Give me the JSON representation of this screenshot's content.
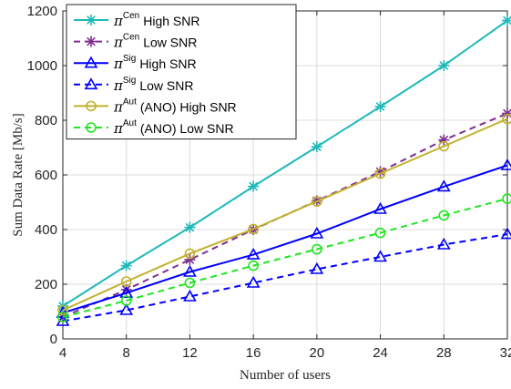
{
  "chart_data": {
    "type": "line",
    "xlabel": "Number of users",
    "ylabel": "Sum Data Rate [Mb/s]",
    "xlim": [
      4,
      32
    ],
    "ylim": [
      0,
      1200
    ],
    "xticks": [
      4,
      8,
      12,
      16,
      20,
      24,
      28,
      32
    ],
    "yticks": [
      0,
      200,
      400,
      600,
      800,
      1000,
      1200
    ],
    "grid": true,
    "legend_position": "top-left",
    "x": [
      4,
      8,
      12,
      16,
      20,
      24,
      28,
      32
    ],
    "series": [
      {
        "name_symbol": "π",
        "name_superscript": "Cen",
        "name_suffix": "High SNR",
        "color": "#1fb9b9",
        "line_style": "solid",
        "marker": "asterisk",
        "values": [
          120,
          268,
          408,
          558,
          703,
          850,
          1000,
          1165
        ]
      },
      {
        "name_symbol": "π",
        "name_superscript": "Cen",
        "name_suffix": "Low SNR",
        "color": "#7e2f8e",
        "line_style": "dashed",
        "marker": "asterisk",
        "values": [
          80,
          180,
          290,
          400,
          505,
          612,
          728,
          825
        ]
      },
      {
        "name_symbol": "π",
        "name_superscript": "Sig",
        "name_suffix": "High SNR",
        "color": "#0000ff",
        "line_style": "solid",
        "marker": "triangle",
        "values": [
          95,
          168,
          245,
          308,
          385,
          475,
          557,
          635
        ]
      },
      {
        "name_symbol": "π",
        "name_superscript": "Sig",
        "name_suffix": "Low SNR",
        "color": "#0000ff",
        "line_style": "dashed",
        "marker": "triangle",
        "values": [
          65,
          105,
          155,
          205,
          255,
          300,
          345,
          383
        ]
      },
      {
        "name_symbol": "π",
        "name_superscript": "Aut",
        "name_suffix": "(ANO) High SNR",
        "color": "#c2b12c",
        "line_style": "solid",
        "marker": "circle",
        "values": [
          105,
          210,
          312,
          402,
          503,
          605,
          705,
          805
        ]
      },
      {
        "name_symbol": "π",
        "name_superscript": "Aut",
        "name_suffix": "(ANO)  Low SNR",
        "color": "#20e620",
        "line_style": "dashed",
        "marker": "circle",
        "values": [
          80,
          140,
          205,
          268,
          328,
          388,
          452,
          513
        ]
      }
    ]
  }
}
